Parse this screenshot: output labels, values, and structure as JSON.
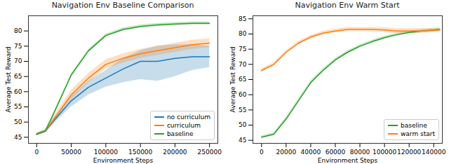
{
  "chart_data": [
    {
      "type": "line",
      "title": "Navigation Env Baseline Comparison",
      "x_label": "Environment Steps",
      "y_label": "Average Test Reward",
      "xlim": [
        -12000,
        262000
      ],
      "xticks": [
        0,
        50000,
        100000,
        150000,
        200000,
        250000
      ],
      "ylim": [
        43,
        85
      ],
      "yticks": [
        45,
        50,
        55,
        60,
        65,
        70,
        75,
        80
      ],
      "legend": "lower right",
      "x": [
        0,
        12500,
        25000,
        50000,
        75000,
        100000,
        125000,
        150000,
        175000,
        200000,
        225000,
        250000
      ],
      "series": [
        {
          "name": "no curriculum",
          "color": "#1f77b4",
          "values": [
            46,
            47,
            50.5,
            57,
            61.5,
            64.5,
            67.5,
            70,
            70,
            71,
            71.5,
            71.5
          ],
          "lower": [
            45.5,
            46.5,
            49.5,
            55,
            59,
            61.5,
            63,
            64,
            63.5,
            65,
            67,
            68
          ],
          "upper": [
            46.5,
            47.5,
            51.5,
            58.5,
            63.5,
            67,
            71,
            73.5,
            75,
            75.5,
            75.5,
            75
          ]
        },
        {
          "name": "curriculum",
          "color": "#ff7f0e",
          "values": [
            46,
            47,
            51,
            59,
            64.5,
            69,
            71,
            72.5,
            73.5,
            74.5,
            75.5,
            76
          ],
          "lower": [
            45.6,
            46.5,
            50,
            57.5,
            63,
            67.5,
            69.5,
            71,
            72,
            73,
            74,
            74.5
          ],
          "upper": [
            46.4,
            47.5,
            52,
            60.5,
            66,
            70.5,
            72.5,
            74,
            75,
            76,
            77,
            77.5
          ]
        },
        {
          "name": "baseline",
          "color": "#2ca02c",
          "values": [
            46,
            47,
            53,
            65.5,
            73.5,
            78.5,
            80.5,
            81.5,
            82,
            82.3,
            82.5,
            82.5
          ],
          "lower": [
            45.7,
            46.6,
            52.5,
            65,
            73,
            78,
            80,
            81,
            81.5,
            81.8,
            82,
            82
          ],
          "upper": [
            46.3,
            47.4,
            53.5,
            66,
            74,
            79,
            81,
            82,
            82.5,
            82.8,
            83,
            83
          ]
        }
      ]
    },
    {
      "type": "line",
      "title": "Navigation Env Warm Start",
      "x_label": "Environment Steps",
      "y_label": "Average Test Reward",
      "xlim": [
        -7000,
        147000
      ],
      "xticks": [
        0,
        20000,
        40000,
        60000,
        80000,
        100000,
        120000,
        140000
      ],
      "ylim": [
        44,
        86
      ],
      "yticks": [
        45,
        50,
        55,
        60,
        65,
        70,
        75,
        80,
        85
      ],
      "legend": "lower right",
      "x": [
        0,
        10000,
        20000,
        30000,
        40000,
        50000,
        60000,
        70000,
        80000,
        90000,
        100000,
        110000,
        120000,
        130000,
        140000,
        145000
      ],
      "series": [
        {
          "name": "baseline",
          "color": "#2ca02c",
          "values": [
            46,
            47,
            52,
            58,
            64,
            68,
            71.5,
            74,
            76,
            77.5,
            78.8,
            79.8,
            80.5,
            81,
            81.3,
            81.5
          ],
          "lower": [
            45.6,
            46.5,
            51.4,
            57.4,
            63.4,
            67.4,
            71,
            73.5,
            75.5,
            77,
            78.3,
            79.3,
            80,
            80.5,
            80.8,
            81
          ],
          "upper": [
            46.4,
            47.5,
            52.6,
            58.6,
            64.6,
            68.6,
            72,
            74.5,
            76.5,
            78,
            79.3,
            80.3,
            81,
            81.5,
            81.8,
            82
          ]
        },
        {
          "name": "warm start",
          "color": "#ff7f0e",
          "values": [
            68,
            70,
            74,
            77,
            79,
            80.3,
            81,
            81.5,
            81.5,
            81.5,
            81.3,
            81,
            81,
            81,
            81.2,
            81.3
          ],
          "lower": [
            67.5,
            69.4,
            73.4,
            76.4,
            78.4,
            79.7,
            80.4,
            80.8,
            80.8,
            80.8,
            80.5,
            80.2,
            80.2,
            80.2,
            80.5,
            80.6
          ],
          "upper": [
            68.5,
            70.6,
            74.6,
            77.6,
            79.6,
            80.9,
            81.6,
            82.2,
            82.2,
            82.2,
            82.1,
            81.8,
            81.8,
            81.8,
            81.9,
            82
          ]
        }
      ]
    }
  ]
}
